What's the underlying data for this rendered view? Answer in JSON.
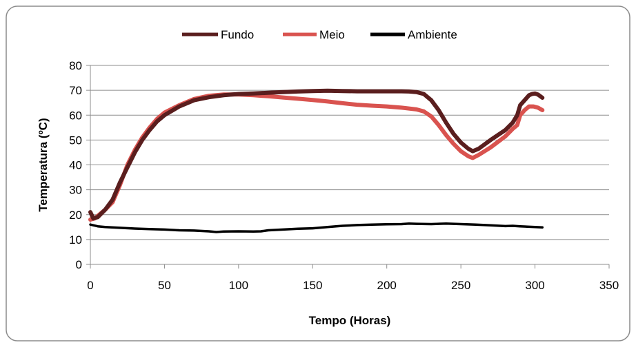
{
  "chart_data": {
    "type": "line",
    "title": "",
    "xlabel": "Tempo (Horas)",
    "ylabel": "Temperatura (ºC)",
    "xlim": [
      0,
      350
    ],
    "ylim": [
      0,
      80
    ],
    "x_ticks": [
      0,
      50,
      100,
      150,
      200,
      250,
      300,
      350
    ],
    "y_ticks": [
      0,
      10,
      20,
      30,
      40,
      50,
      60,
      70,
      80
    ],
    "grid": "horizontal",
    "legend_position": "top",
    "series": [
      {
        "name": "Fundo",
        "color": "#5a1e1e",
        "points": [
          [
            0,
            21
          ],
          [
            2,
            18.5
          ],
          [
            5,
            19
          ],
          [
            10,
            22
          ],
          [
            15,
            26
          ],
          [
            20,
            33
          ],
          [
            25,
            39
          ],
          [
            30,
            45
          ],
          [
            35,
            50
          ],
          [
            40,
            54
          ],
          [
            45,
            57.5
          ],
          [
            50,
            60
          ],
          [
            60,
            63.5
          ],
          [
            70,
            66
          ],
          [
            80,
            67.2
          ],
          [
            90,
            68
          ],
          [
            100,
            68.5
          ],
          [
            110,
            68.7
          ],
          [
            120,
            69
          ],
          [
            130,
            69.3
          ],
          [
            140,
            69.5
          ],
          [
            150,
            69.7
          ],
          [
            160,
            69.8
          ],
          [
            170,
            69.7
          ],
          [
            180,
            69.6
          ],
          [
            190,
            69.6
          ],
          [
            200,
            69.6
          ],
          [
            210,
            69.6
          ],
          [
            215,
            69.5
          ],
          [
            220,
            69.3
          ],
          [
            225,
            68.5
          ],
          [
            230,
            66
          ],
          [
            235,
            62
          ],
          [
            240,
            57
          ],
          [
            245,
            52.5
          ],
          [
            250,
            49
          ],
          [
            255,
            46.5
          ],
          [
            258,
            45.5
          ],
          [
            262,
            46.5
          ],
          [
            270,
            50
          ],
          [
            280,
            54
          ],
          [
            285,
            57
          ],
          [
            288,
            60
          ],
          [
            290,
            64
          ],
          [
            293,
            66
          ],
          [
            296,
            68
          ],
          [
            298,
            68.5
          ],
          [
            300,
            68.7
          ],
          [
            302,
            68.3
          ],
          [
            305,
            67
          ]
        ]
      },
      {
        "name": "Meio",
        "color": "#d9534f",
        "points": [
          [
            0,
            18
          ],
          [
            3,
            18.5
          ],
          [
            5,
            19.5
          ],
          [
            10,
            22
          ],
          [
            15,
            25
          ],
          [
            20,
            32
          ],
          [
            25,
            40
          ],
          [
            30,
            46
          ],
          [
            35,
            51
          ],
          [
            40,
            55
          ],
          [
            45,
            58.5
          ],
          [
            50,
            61
          ],
          [
            60,
            64
          ],
          [
            70,
            66.5
          ],
          [
            80,
            67.8
          ],
          [
            90,
            68.3
          ],
          [
            100,
            68.3
          ],
          [
            110,
            68
          ],
          [
            120,
            67.6
          ],
          [
            130,
            67.1
          ],
          [
            140,
            66.6
          ],
          [
            150,
            66.1
          ],
          [
            160,
            65.5
          ],
          [
            170,
            64.8
          ],
          [
            180,
            64.2
          ],
          [
            190,
            63.8
          ],
          [
            200,
            63.5
          ],
          [
            210,
            63
          ],
          [
            220,
            62.3
          ],
          [
            225,
            61.5
          ],
          [
            230,
            59.5
          ],
          [
            235,
            56
          ],
          [
            240,
            52
          ],
          [
            245,
            48.5
          ],
          [
            250,
            45.5
          ],
          [
            255,
            43.5
          ],
          [
            258,
            42.8
          ],
          [
            262,
            44
          ],
          [
            270,
            47
          ],
          [
            280,
            51.5
          ],
          [
            285,
            54.5
          ],
          [
            288,
            56
          ],
          [
            290,
            60
          ],
          [
            293,
            62
          ],
          [
            296,
            63.5
          ],
          [
            299,
            63.5
          ],
          [
            302,
            63
          ],
          [
            305,
            62
          ]
        ]
      },
      {
        "name": "Ambiente",
        "color": "#000000",
        "points": [
          [
            0,
            16
          ],
          [
            5,
            15.3
          ],
          [
            10,
            15
          ],
          [
            20,
            14.7
          ],
          [
            30,
            14.4
          ],
          [
            40,
            14.2
          ],
          [
            50,
            14
          ],
          [
            60,
            13.7
          ],
          [
            70,
            13.6
          ],
          [
            80,
            13.3
          ],
          [
            85,
            13
          ],
          [
            90,
            13.2
          ],
          [
            100,
            13.3
          ],
          [
            110,
            13.2
          ],
          [
            115,
            13.3
          ],
          [
            120,
            13.7
          ],
          [
            130,
            14
          ],
          [
            140,
            14.3
          ],
          [
            150,
            14.5
          ],
          [
            160,
            15
          ],
          [
            170,
            15.5
          ],
          [
            180,
            15.8
          ],
          [
            190,
            16
          ],
          [
            200,
            16.1
          ],
          [
            210,
            16.2
          ],
          [
            215,
            16.4
          ],
          [
            220,
            16.3
          ],
          [
            230,
            16.2
          ],
          [
            240,
            16.4
          ],
          [
            250,
            16.2
          ],
          [
            260,
            16
          ],
          [
            270,
            15.7
          ],
          [
            280,
            15.4
          ],
          [
            285,
            15.5
          ],
          [
            290,
            15.3
          ],
          [
            300,
            15
          ],
          [
            305,
            14.9
          ]
        ]
      }
    ]
  }
}
